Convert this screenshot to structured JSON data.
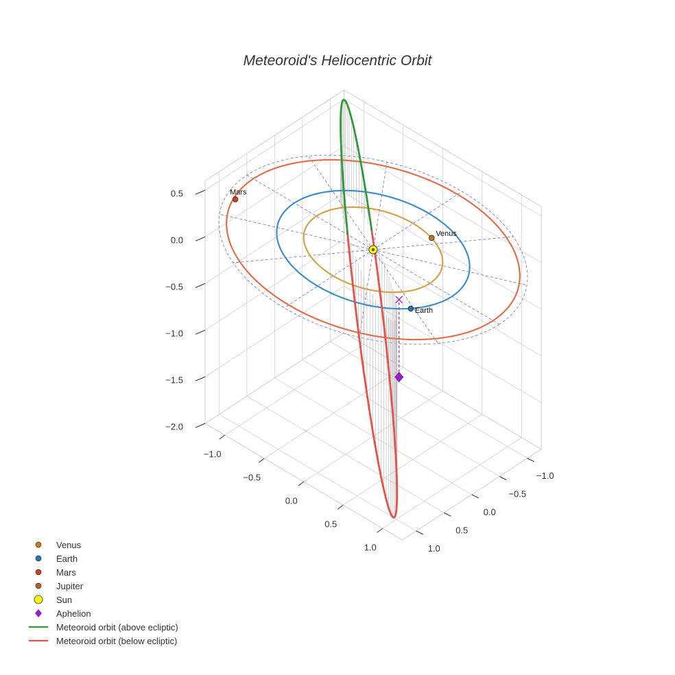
{
  "chart_data": {
    "type": "scatter",
    "title": "Meteoroid's Heliocentric Orbit",
    "xlabel": "",
    "ylabel": "",
    "zlabel": "",
    "projection": "3d",
    "grid": true,
    "legend_position": "bottom-left",
    "axes": {
      "x": {
        "range": [
          -1.25,
          1.25
        ],
        "ticks": [
          "−1.0",
          "−0.5",
          "0.0",
          "0.5",
          "1.0"
        ],
        "tick_values": [
          -1.0,
          -0.5,
          0.0,
          0.5,
          1.0
        ]
      },
      "y": {
        "range": [
          -1.25,
          1.25
        ],
        "ticks": [
          "−1.0",
          "−0.5",
          "0.0",
          "0.5",
          "1.0"
        ],
        "tick_values": [
          -1.0,
          -0.5,
          0.0,
          0.5,
          1.0
        ]
      },
      "z": {
        "range": [
          -2.0,
          0.6
        ],
        "ticks": [
          "−2.0",
          "−1.5",
          "−1.0",
          "−0.5",
          "0.0",
          "0.5"
        ],
        "tick_values": [
          -2.0,
          -1.5,
          -1.0,
          -0.5,
          0.0,
          0.5
        ]
      }
    },
    "planet_orbits": [
      {
        "name": "Venus",
        "radius_au": 0.72,
        "color": "#d4a248"
      },
      {
        "name": "Earth",
        "radius_au": 1.0,
        "color": "#3f8fc8"
      },
      {
        "name": "Mars",
        "radius_au": 1.52,
        "color": "#e0704c"
      }
    ],
    "bodies": [
      {
        "name": "Venus",
        "label": "Venus",
        "x": 0.27,
        "y": -0.67,
        "z": 0.0,
        "color": "#c87a18"
      },
      {
        "name": "Earth",
        "label": "Earth",
        "x": 0.85,
        "y": 0.53,
        "z": 0.0,
        "color": "#1f77b4"
      },
      {
        "name": "Mars",
        "label": "Mars",
        "x": -1.43,
        "y": 0.45,
        "z": 0.0,
        "color": "#c8441a"
      },
      {
        "name": "Sun",
        "label": "",
        "x": 0.0,
        "y": 0.0,
        "z": 0.0,
        "color": "#ffff00"
      }
    ],
    "reference_grid": {
      "radius_au": 1.6,
      "spokes": 12
    },
    "meteoroid_orbit": {
      "perihelion_vector": [
        -0.78,
        -0.58,
        0.99
      ],
      "aphelion_vector": [
        0.86,
        0.85,
        -2.11
      ],
      "minor_axis_vector": [
        -0.086,
        0.115,
        0.0
      ],
      "segments": [
        {
          "name": "Meteoroid orbit (above ecliptic)",
          "color": "#2e9a3a"
        },
        {
          "name": "Meteoroid orbit (below ecliptic)",
          "color": "#e8504a"
        }
      ]
    },
    "aphelion_point": {
      "name": "Aphelion",
      "x": 0.68,
      "y": 0.5,
      "z": -0.83,
      "color": "#9b1ccc"
    },
    "aphelion_projection": {
      "x": 0.68,
      "y": 0.5,
      "z": 0.0,
      "color": "#9b1ccc"
    },
    "legend": [
      {
        "label": "Venus",
        "symbol": "dot",
        "color": "#c87a18"
      },
      {
        "label": "Earth",
        "symbol": "dot",
        "color": "#1f77b4"
      },
      {
        "label": "Mars",
        "symbol": "dot",
        "color": "#c8441a"
      },
      {
        "label": "Jupiter",
        "symbol": "dot",
        "color": "#b8602a"
      },
      {
        "label": "Sun",
        "symbol": "sun",
        "color": "#ffff00"
      },
      {
        "label": "Aphelion",
        "symbol": "diamond",
        "color": "#9b1ccc"
      },
      {
        "label": "Meteoroid orbit (above ecliptic)",
        "symbol": "line",
        "color": "#2e9a3a"
      },
      {
        "label": "Meteoroid orbit (below ecliptic)",
        "symbol": "line",
        "color": "#e8504a"
      }
    ]
  }
}
